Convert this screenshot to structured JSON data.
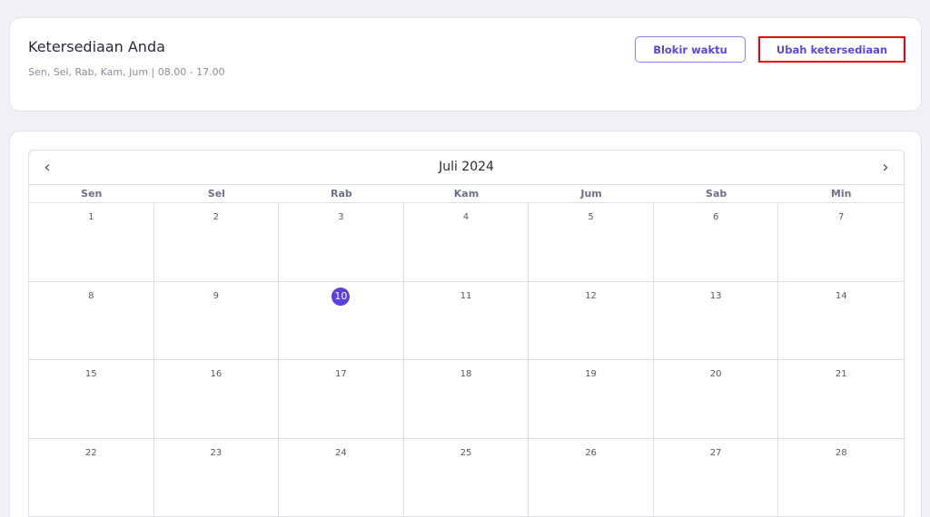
{
  "header": {
    "title": "Ketersediaan Anda",
    "subtitle": "Sen, Sel, Rab, Kam, Jum | 08.00 - 17.00",
    "block_label": "Blokir waktu",
    "edit_label": "Ubah ketersediaan"
  },
  "calendar": {
    "month": "Juli 2024",
    "prev_icon": "chevron-left",
    "next_icon": "chevron-right",
    "weekdays": [
      "Sen",
      "Sel",
      "Rab",
      "Kam",
      "Jum",
      "Sab",
      "Min"
    ],
    "days": [
      "1",
      "2",
      "3",
      "4",
      "5",
      "6",
      "7",
      "8",
      "9",
      "10",
      "11",
      "12",
      "13",
      "14",
      "15",
      "16",
      "17",
      "18",
      "19",
      "20",
      "21",
      "22",
      "23",
      "24",
      "25",
      "26",
      "27",
      "28"
    ],
    "today": "10",
    "accent": "#5b3fd9"
  }
}
